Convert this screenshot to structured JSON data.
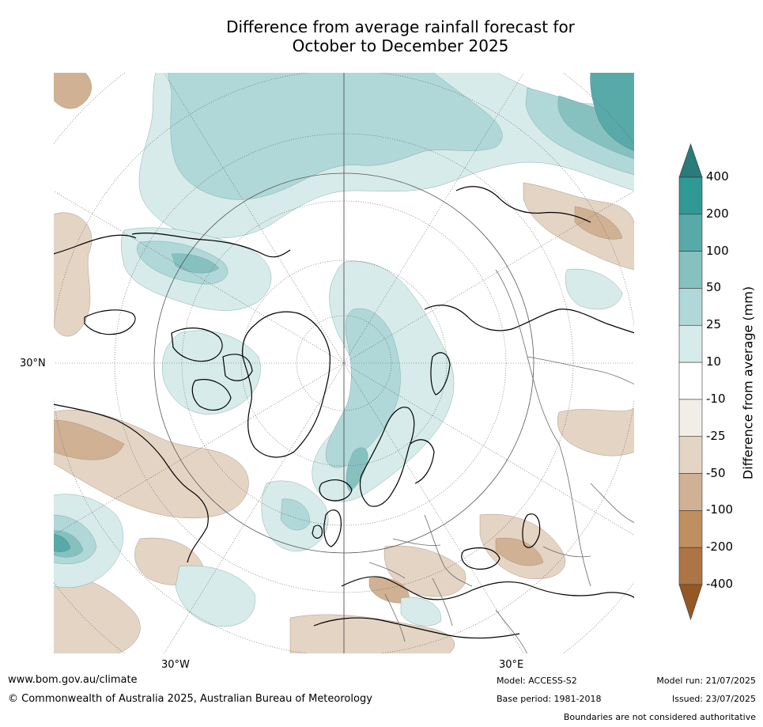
{
  "title_line1": "Difference from average rainfall forecast for",
  "title_line2": "October to December 2025",
  "lat_label": "30°N",
  "lon_labels": [
    "30°W",
    "30°E"
  ],
  "colorbar": {
    "title": "Difference from average (mm)",
    "labels": [
      "400",
      "200",
      "100",
      "50",
      "25",
      "10",
      "-10",
      "-25",
      "-50",
      "-100",
      "-200",
      "-400"
    ],
    "colors": [
      "#2a7b7a",
      "#2f9995",
      "#58aaa9",
      "#86c1c0",
      "#b0d8d8",
      "#d7ebea",
      "#ffffff",
      "#f2ede7",
      "#e4d4c4",
      "#d1b193",
      "#bf8f60",
      "#ad7545",
      "#955824"
    ]
  },
  "footer": {
    "website": "www.bom.gov.au/climate",
    "copyright": "© Commonwealth of Australia 2025, Australian Bureau of Meteorology",
    "model": "Model: ACCESS-S2",
    "base_period": "Base period: 1981-2018",
    "model_run": "Model run: 21/07/2025",
    "issued": "Issued: 23/07/2025",
    "disclaimer": "Boundaries are not considered authoritative"
  }
}
